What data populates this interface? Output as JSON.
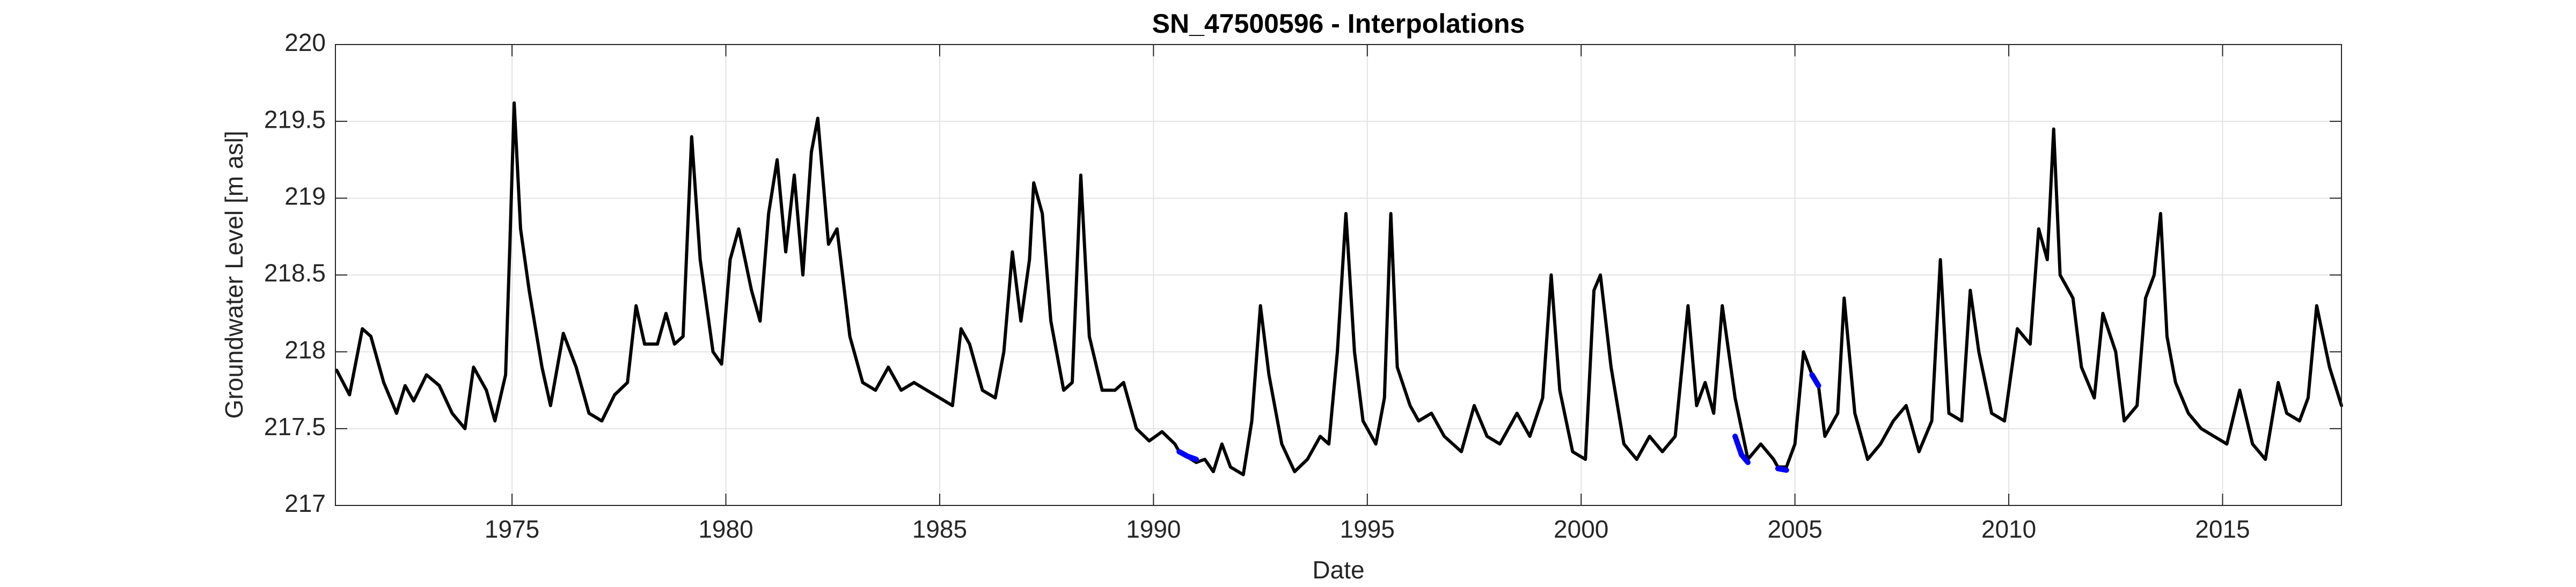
{
  "chart_data": {
    "type": "line",
    "title": "SN_47500596 - Interpolations",
    "x_label": "Date",
    "y_label": "Groundwater Level [m asl]",
    "xlim": [
      1970.87,
      2017.78
    ],
    "xticks": [
      1975,
      1980,
      1985,
      1990,
      1995,
      2000,
      2005,
      2010,
      2015
    ],
    "ylim": [
      217,
      220
    ],
    "yticks": [
      217,
      217.5,
      218,
      218.5,
      219,
      219.5,
      220
    ],
    "grid": true,
    "series": [
      {
        "color": "#000000",
        "x": [
          1970.9,
          1971.2,
          1971.5,
          1971.7,
          1972.0,
          1972.3,
          1972.5,
          1972.7,
          1973.0,
          1973.3,
          1973.6,
          1973.9,
          1974.1,
          1974.4,
          1974.6,
          1974.85,
          1974.95,
          1975.05,
          1975.2,
          1975.4,
          1975.7,
          1975.9,
          1976.2,
          1976.5,
          1976.8,
          1977.1,
          1977.4,
          1977.7,
          1977.9,
          1978.1,
          1978.4,
          1978.6,
          1978.8,
          1979.0,
          1979.2,
          1979.4,
          1979.7,
          1979.9,
          1980.1,
          1980.3,
          1980.6,
          1980.8,
          1981.0,
          1981.2,
          1981.4,
          1981.6,
          1981.8,
          1982.0,
          1982.15,
          1982.4,
          1982.6,
          1982.9,
          1983.2,
          1983.5,
          1983.8,
          1984.1,
          1984.4,
          1984.7,
          1985.0,
          1985.3,
          1985.5,
          1985.7,
          1986.0,
          1986.3,
          1986.5,
          1986.7,
          1986.9,
          1987.1,
          1987.2,
          1987.4,
          1987.6,
          1987.9,
          1988.1,
          1988.3,
          1988.5,
          1988.8,
          1989.1,
          1989.3,
          1989.6,
          1989.9,
          1990.2,
          1990.5,
          1990.6,
          1991.0,
          1991.2,
          1991.4,
          1991.6,
          1991.8,
          1992.1,
          1992.3,
          1992.5,
          1992.7,
          1993.0,
          1993.3,
          1993.6,
          1993.9,
          1994.1,
          1994.3,
          1994.5,
          1994.7,
          1994.9,
          1995.2,
          1995.4,
          1995.55,
          1995.7,
          1996.0,
          1996.2,
          1996.5,
          1996.8,
          1997.2,
          1997.5,
          1997.8,
          1998.1,
          1998.5,
          1998.8,
          1999.1,
          1999.3,
          1999.5,
          1999.8,
          2000.1,
          2000.3,
          2000.45,
          2000.7,
          2001.0,
          2001.3,
          2001.6,
          2001.9,
          2002.2,
          2002.5,
          2002.7,
          2002.9,
          2003.1,
          2003.3,
          2003.6,
          2003.9,
          2004.2,
          2004.5,
          2004.6,
          2004.8,
          2005.0,
          2005.2,
          2005.4,
          2005.55,
          2005.7,
          2006.0,
          2006.15,
          2006.4,
          2006.7,
          2007.0,
          2007.3,
          2007.6,
          2007.9,
          2008.2,
          2008.4,
          2008.6,
          2008.9,
          2009.1,
          2009.3,
          2009.6,
          2009.9,
          2010.2,
          2010.5,
          2010.7,
          2010.9,
          2011.05,
          2011.2,
          2011.5,
          2011.7,
          2012.0,
          2012.2,
          2012.5,
          2012.7,
          2013.0,
          2013.2,
          2013.4,
          2013.55,
          2013.7,
          2013.9,
          2014.2,
          2014.5,
          2014.8,
          2015.1,
          2015.4,
          2015.7,
          2016.0,
          2016.3,
          2016.5,
          2016.8,
          2017.0,
          2017.2,
          2017.5,
          2017.78
        ],
        "values": [
          217.88,
          217.72,
          218.15,
          218.1,
          217.8,
          217.6,
          217.78,
          217.68,
          217.85,
          217.78,
          217.6,
          217.5,
          217.9,
          217.75,
          217.55,
          217.85,
          218.7,
          219.62,
          218.8,
          218.4,
          217.9,
          217.65,
          218.12,
          217.9,
          217.6,
          217.55,
          217.72,
          217.8,
          218.3,
          218.05,
          218.05,
          218.25,
          218.05,
          218.1,
          219.4,
          218.6,
          218.0,
          217.92,
          218.6,
          218.8,
          218.4,
          218.2,
          218.9,
          219.25,
          218.65,
          219.15,
          218.5,
          219.3,
          219.52,
          218.7,
          218.8,
          218.1,
          217.8,
          217.75,
          217.9,
          217.75,
          217.8,
          217.75,
          217.7,
          217.65,
          218.15,
          218.05,
          217.75,
          217.7,
          218.0,
          218.65,
          218.2,
          218.6,
          219.1,
          218.9,
          218.2,
          217.75,
          217.8,
          219.15,
          218.1,
          217.75,
          217.75,
          217.8,
          217.5,
          217.42,
          217.48,
          217.4,
          217.35,
          217.28,
          217.3,
          217.22,
          217.4,
          217.25,
          217.2,
          217.55,
          218.3,
          217.85,
          217.4,
          217.22,
          217.3,
          217.45,
          217.4,
          218.0,
          218.9,
          218.0,
          217.55,
          217.4,
          217.7,
          218.9,
          217.9,
          217.65,
          217.55,
          217.6,
          217.45,
          217.35,
          217.65,
          217.45,
          217.4,
          217.6,
          217.45,
          217.7,
          218.5,
          217.75,
          217.35,
          217.3,
          218.4,
          218.5,
          217.9,
          217.4,
          217.3,
          217.45,
          217.35,
          217.45,
          218.3,
          217.65,
          217.8,
          217.6,
          218.3,
          217.7,
          217.3,
          217.4,
          217.3,
          217.25,
          217.25,
          217.4,
          218.0,
          217.85,
          217.78,
          217.45,
          217.6,
          218.35,
          217.6,
          217.3,
          217.4,
          217.55,
          217.65,
          217.35,
          217.55,
          218.6,
          217.6,
          217.55,
          218.4,
          218.0,
          217.6,
          217.55,
          218.15,
          218.05,
          218.8,
          218.6,
          219.45,
          218.5,
          218.35,
          217.9,
          217.7,
          218.25,
          218.0,
          217.55,
          217.65,
          218.35,
          218.5,
          218.9,
          218.1,
          217.8,
          217.6,
          217.5,
          217.45,
          217.4,
          217.75,
          217.4,
          217.3,
          217.8,
          217.6,
          217.55,
          217.7,
          218.3,
          217.9,
          217.65
        ]
      },
      {
        "color": "#0000ff",
        "x": [
          1990.6,
          1990.8,
          1991.0,
          1991.2,
          2003.6,
          2003.75,
          2003.9,
          2004.2,
          2004.6,
          2004.8,
          2005.1,
          2005.4,
          2005.55
        ],
        "values": [
          217.35,
          217.32,
          217.3,
          null,
          217.45,
          217.33,
          217.28,
          null,
          217.24,
          217.23,
          null,
          217.85,
          217.78
        ]
      }
    ]
  }
}
